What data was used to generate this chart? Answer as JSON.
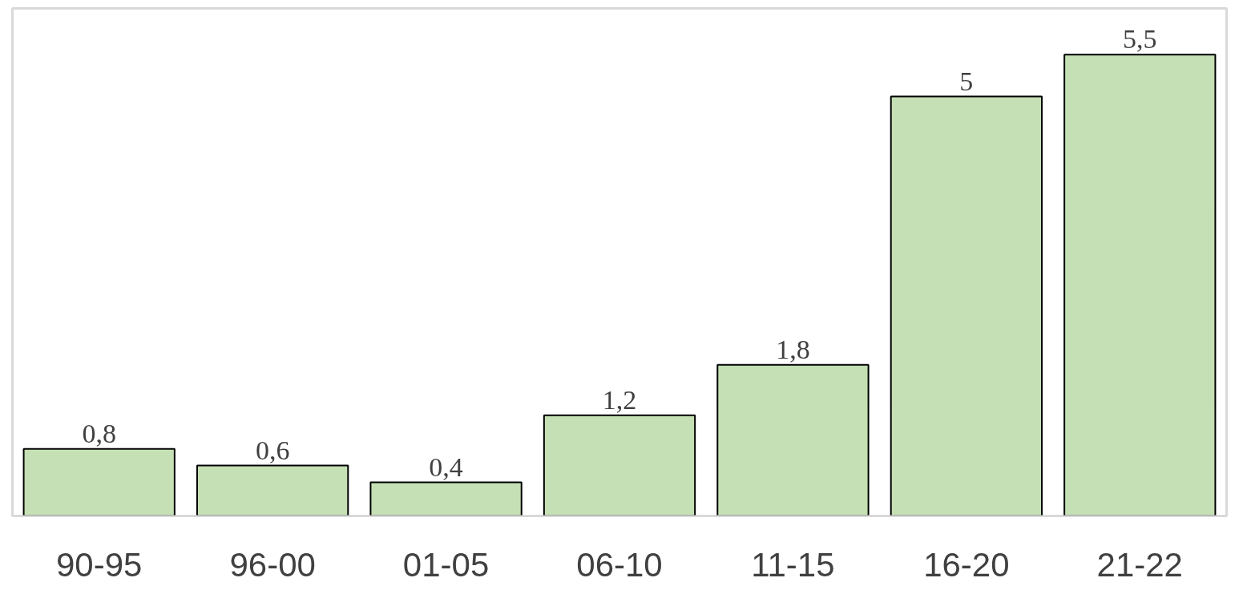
{
  "chart_data": {
    "type": "bar",
    "categories": [
      "90-95",
      "96-00",
      "01-05",
      "06-10",
      "11-15",
      "16-20",
      "21-22"
    ],
    "values": [
      0.8,
      0.6,
      0.4,
      1.2,
      1.8,
      5,
      5.5
    ],
    "value_labels": [
      "0,8",
      "0,6",
      "0,4",
      "1,2",
      "1,8",
      "5",
      "5,5"
    ],
    "color": "#c5e0b4",
    "grid": false
  }
}
